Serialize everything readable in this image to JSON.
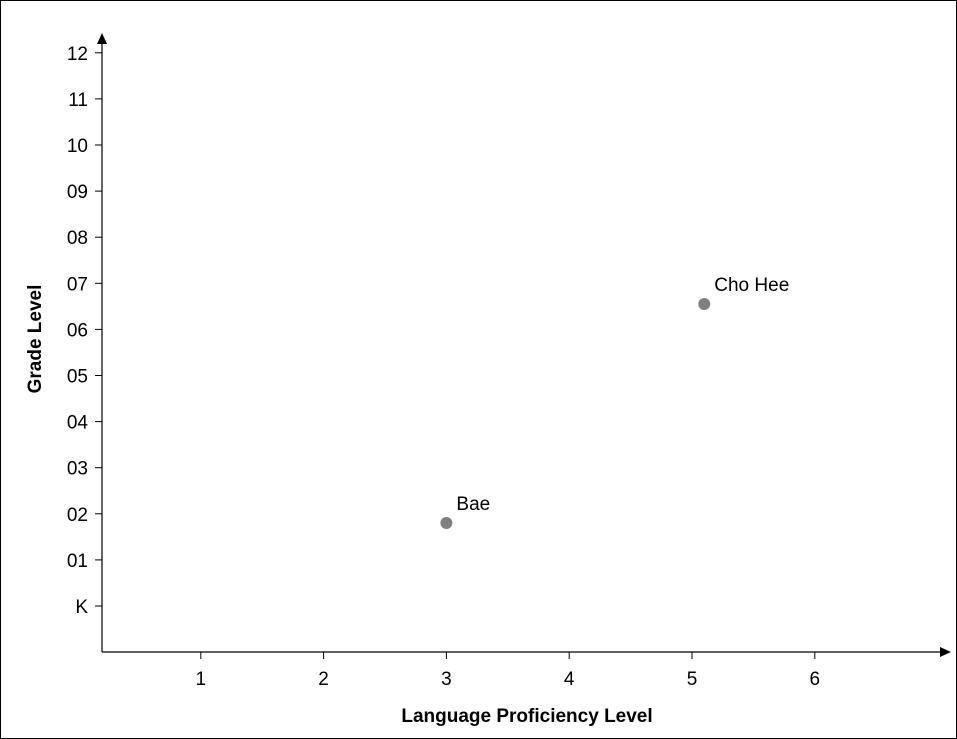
{
  "chart_data": {
    "type": "scatter",
    "title": "",
    "xlabel": "Language Proficiency Level",
    "ylabel": "Grade Level",
    "x_ticks": [
      1,
      2,
      3,
      4,
      5,
      6
    ],
    "y_ticks": [
      "K",
      "01",
      "02",
      "03",
      "04",
      "05",
      "06",
      "07",
      "08",
      "09",
      "10",
      "11",
      "12"
    ],
    "xlim": [
      0.2,
      6.9
    ],
    "ylim": [
      -1,
      12.5
    ],
    "grid": false,
    "points": [
      {
        "label": "Bae",
        "x": 3.0,
        "y": 1.8
      },
      {
        "label": "Cho Hee",
        "x": 5.1,
        "y": 6.55
      }
    ],
    "colors": {
      "axis": "#000000",
      "point": "#808080"
    }
  }
}
